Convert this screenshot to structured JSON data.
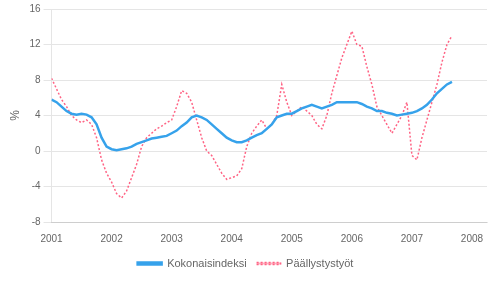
{
  "chart_data": {
    "type": "line",
    "ylabel": "%",
    "x": [
      2001.0,
      2001.0833333333333,
      2001.1666666666667,
      2001.25,
      2001.3333333333333,
      2001.4166666666667,
      2001.5,
      2001.5833333333333,
      2001.6666666666667,
      2001.75,
      2001.8333333333333,
      2001.9166666666667,
      2002.0,
      2002.0833333333333,
      2002.1666666666667,
      2002.25,
      2002.3333333333333,
      2002.4166666666667,
      2002.5,
      2002.5833333333333,
      2002.6666666666667,
      2002.75,
      2002.8333333333333,
      2002.9166666666667,
      2003.0,
      2003.0833333333333,
      2003.1666666666667,
      2003.25,
      2003.3333333333333,
      2003.4166666666667,
      2003.5,
      2003.5833333333333,
      2003.6666666666667,
      2003.75,
      2003.8333333333333,
      2003.9166666666667,
      2004.0,
      2004.0833333333333,
      2004.1666666666667,
      2004.25,
      2004.3333333333333,
      2004.4166666666667,
      2004.5,
      2004.5833333333333,
      2004.6666666666667,
      2004.75,
      2004.8333333333333,
      2004.9166666666667,
      2005.0,
      2005.0833333333333,
      2005.1666666666667,
      2005.25,
      2005.3333333333333,
      2005.4166666666667,
      2005.5,
      2005.5833333333333,
      2005.6666666666667,
      2005.75,
      2005.8333333333333,
      2005.9166666666667,
      2006.0,
      2006.0833333333333,
      2006.1666666666667,
      2006.25,
      2006.3333333333333,
      2006.4166666666667,
      2006.5,
      2006.5833333333333,
      2006.6666666666667,
      2006.75,
      2006.8333333333333,
      2006.9166666666667,
      2007.0,
      2007.0833333333333,
      2007.1666666666667,
      2007.25,
      2007.3333333333333,
      2007.4166666666667,
      2007.5,
      2007.5833333333333,
      2007.6666666666667
    ],
    "series": [
      {
        "name": "Kokonaisindeksi",
        "line_style": "solid",
        "values": [
          5.8,
          5.5,
          5.0,
          4.5,
          4.2,
          4.1,
          4.2,
          4.1,
          3.8,
          3.0,
          1.5,
          0.5,
          0.2,
          0.1,
          0.2,
          0.3,
          0.5,
          0.8,
          1.0,
          1.2,
          1.4,
          1.5,
          1.6,
          1.7,
          2.0,
          2.3,
          2.8,
          3.2,
          3.8,
          4.0,
          3.8,
          3.5,
          3.0,
          2.5,
          2.0,
          1.5,
          1.2,
          1.0,
          1.0,
          1.2,
          1.5,
          1.8,
          2.0,
          2.5,
          3.0,
          3.8,
          4.0,
          4.2,
          4.2,
          4.5,
          4.8,
          5.0,
          5.2,
          5.0,
          4.8,
          5.0,
          5.2,
          5.5,
          5.5,
          5.5,
          5.5,
          5.5,
          5.3,
          5.0,
          4.8,
          4.5,
          4.5,
          4.3,
          4.2,
          4.0,
          4.1,
          4.2,
          4.3,
          4.5,
          4.8,
          5.2,
          5.8,
          6.5,
          7.0,
          7.5,
          7.8
        ]
      },
      {
        "name": "Päällystystyöt",
        "line_style": "dotted",
        "values": [
          8.2,
          7.0,
          5.8,
          5.0,
          4.0,
          3.5,
          3.2,
          3.5,
          3.0,
          1.5,
          -1.0,
          -2.5,
          -3.5,
          -4.8,
          -5.3,
          -4.5,
          -3.0,
          -1.5,
          0.5,
          1.5,
          2.0,
          2.5,
          2.8,
          3.2,
          3.5,
          5.0,
          6.8,
          6.5,
          5.5,
          3.5,
          1.5,
          0.0,
          -0.5,
          -1.5,
          -2.5,
          -3.2,
          -3.0,
          -2.8,
          -2.0,
          0.5,
          2.0,
          2.8,
          3.5,
          2.5,
          3.0,
          4.0,
          7.5,
          5.5,
          4.0,
          4.5,
          5.0,
          4.5,
          4.0,
          3.0,
          2.5,
          4.0,
          6.5,
          8.5,
          10.5,
          12.0,
          13.5,
          12.0,
          11.8,
          9.5,
          7.5,
          5.0,
          4.0,
          3.0,
          2.0,
          3.0,
          4.0,
          5.5,
          -0.5,
          -1.0,
          1.5,
          3.5,
          5.5,
          7.5,
          10.0,
          12.0,
          13.0
        ]
      }
    ],
    "xlim": [
      2001.0,
      2008.25
    ],
    "xticks": [
      2001,
      2002,
      2003,
      2004,
      2005,
      2006,
      2007,
      2008
    ],
    "ylim": [
      -8,
      16
    ],
    "yticks": [
      -8,
      -4,
      0,
      4,
      8,
      12,
      16
    ],
    "grid": "y",
    "legend": "bottom"
  }
}
